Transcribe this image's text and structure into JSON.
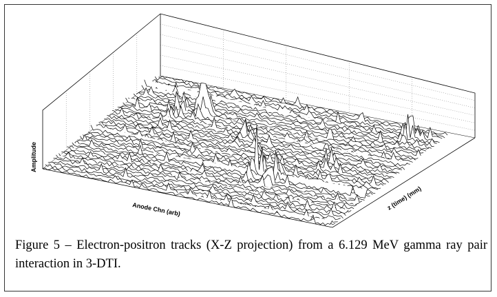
{
  "figure": {
    "y_axis_label": "Amplitude",
    "x_axis_label": "Anode Chn (arb)",
    "z_axis_label": "z (time) (mm)",
    "caption": "Figure 5 – Electron-positron tracks (X-Z projection) from a 6.129 MeV gamma ray pair interaction in 3-DTI."
  }
}
